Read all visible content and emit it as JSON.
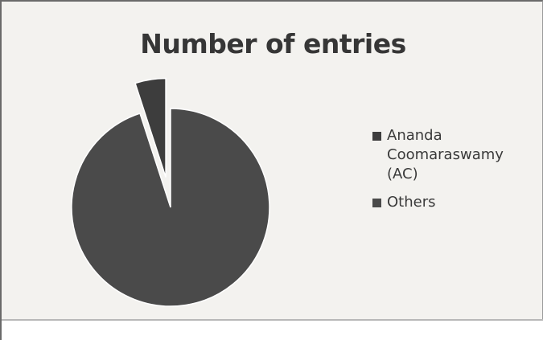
{
  "chart_data": {
    "type": "pie",
    "title": "Number of entries",
    "categories": [
      "Ananda Coomaraswamy (AC)",
      "Others"
    ],
    "values": [
      5,
      95
    ],
    "exploded": [
      true,
      false
    ],
    "colors": [
      "#3d3d3d",
      "#4a4a4a"
    ],
    "legend": {
      "position": "right",
      "entries": [
        "Ananda Coomaraswamy (AC)",
        "Others"
      ]
    }
  }
}
